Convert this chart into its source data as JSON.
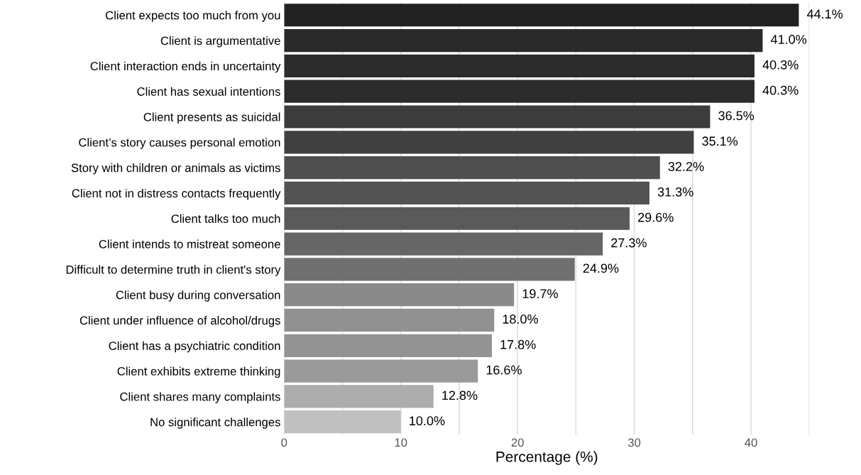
{
  "chart_data": {
    "type": "bar",
    "orientation": "horizontal",
    "xlabel": "Percentage (%)",
    "categories": [
      "Client expects too much from you",
      "Client is argumentative",
      "Client interaction ends in uncertainty",
      "Client has sexual intentions",
      "Client presents as suicidal",
      "Client’s story causes personal emotion",
      "Story with children or animals as victims",
      "Client not in distress contacts frequently",
      "Client talks too much",
      "Client intends to mistreat someone",
      "Difficult to determine truth in client's story",
      "Client busy during conversation",
      "Client under influence of alcohol/drugs",
      "Client has a psychiatric condition",
      "Client exhibits extreme thinking",
      "Client shares many complaints",
      "No significant challenges"
    ],
    "values": [
      44.1,
      41.0,
      40.3,
      40.3,
      36.5,
      35.1,
      32.2,
      31.3,
      29.6,
      27.3,
      24.9,
      19.7,
      18.0,
      17.8,
      16.6,
      12.8,
      10.0
    ],
    "value_labels": [
      "44.1%",
      "41.0%",
      "40.3%",
      "40.3%",
      "36.5%",
      "35.1%",
      "32.2%",
      "31.3%",
      "29.6%",
      "27.3%",
      "24.9%",
      "19.7%",
      "18.0%",
      "17.8%",
      "16.6%",
      "12.8%",
      "10.0%"
    ],
    "colors": [
      "#222222",
      "#2a2a2a",
      "#2c2c2c",
      "#2c2c2c",
      "#3c3c3c",
      "#404040",
      "#4f4f4f",
      "#535353",
      "#5a5a5a",
      "#666666",
      "#707070",
      "#8a8a8a",
      "#919191",
      "#939393",
      "#9a9a9a",
      "#adadad",
      "#c0c0c0"
    ],
    "xlim": [
      0,
      45
    ],
    "xticks": [
      0,
      {
        "value": 5,
        "label": null
      },
      10,
      {
        "value": 15,
        "label": null
      },
      20,
      {
        "value": 25,
        "label": null
      },
      30,
      {
        "value": 35,
        "label": null
      },
      40,
      {
        "value": 45,
        "label": null
      }
    ],
    "grid": "x",
    "legend": false
  }
}
